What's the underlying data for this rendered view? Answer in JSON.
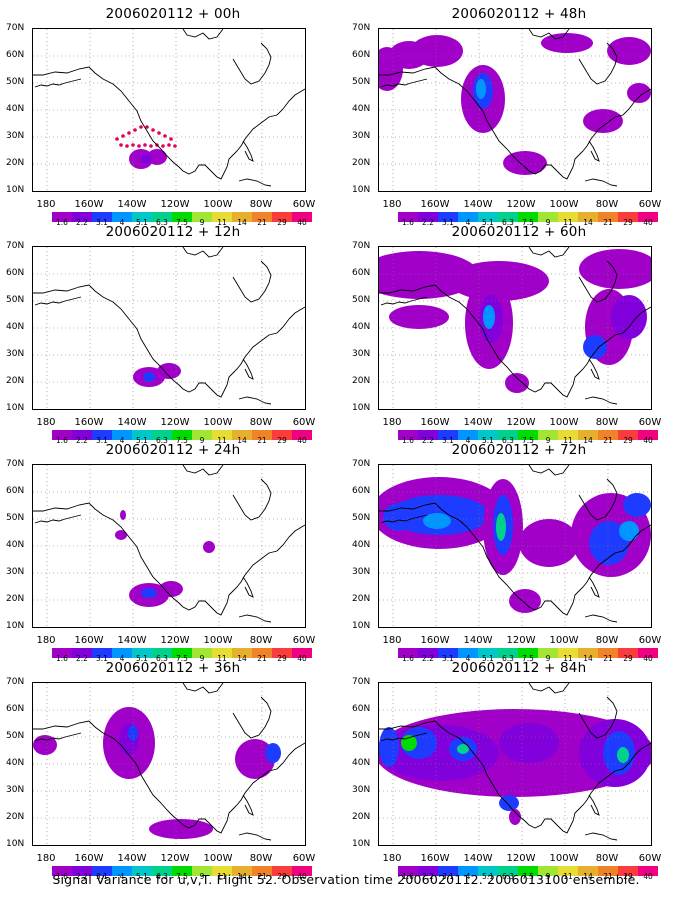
{
  "figure": {
    "caption": "Signal Variance for u,v,T. Flight 52. Observation time 2006020112. 2006013100 ensemble."
  },
  "axes": {
    "lat_labels": [
      "70N",
      "60N",
      "50N",
      "40N",
      "30N",
      "20N",
      "10N"
    ],
    "lon_labels": [
      "180",
      "160W",
      "140W",
      "120W",
      "100W",
      "80W",
      "60W"
    ]
  },
  "colorbar": {
    "labels": [
      "1.6",
      "2.2",
      "3.1",
      "4",
      "5.1",
      "6.3",
      "7.5",
      "9",
      "11",
      "14",
      "21",
      "29",
      "40"
    ],
    "colors": [
      "#a000c8",
      "#8200dc",
      "#1e3cff",
      "#0096ff",
      "#00c8c8",
      "#00d28c",
      "#00dc00",
      "#a0e632",
      "#e6dc32",
      "#e6af2d",
      "#f08228",
      "#fa3c3c",
      "#f00082"
    ]
  },
  "panels": [
    {
      "title": "2006020112 + 00h"
    },
    {
      "title": "2006020112 + 48h"
    },
    {
      "title": "2006020112 + 12h"
    },
    {
      "title": "2006020112 + 60h"
    },
    {
      "title": "2006020112 + 24h"
    },
    {
      "title": "2006020112 + 72h"
    },
    {
      "title": "2006020112 + 36h"
    },
    {
      "title": "2006020112 + 84h"
    }
  ]
}
